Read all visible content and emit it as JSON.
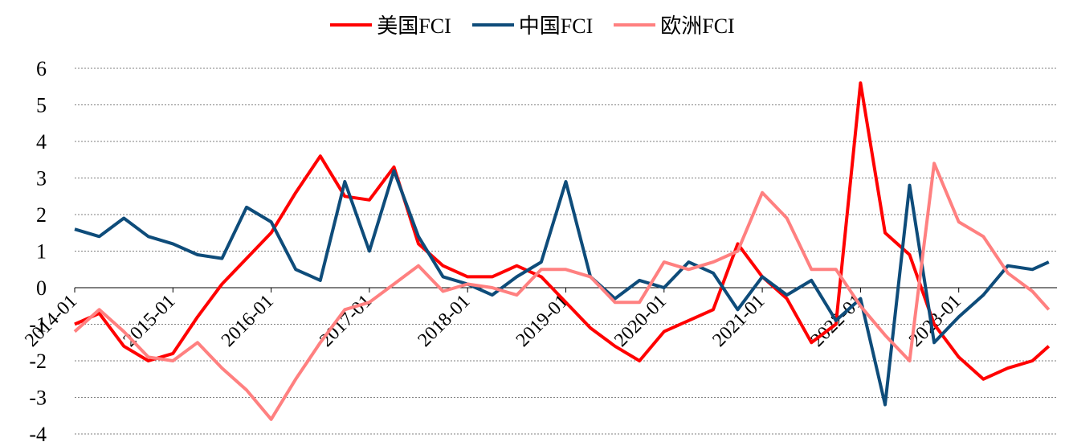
{
  "chart_data": {
    "type": "line",
    "title": "",
    "xlabel": "",
    "ylabel": "",
    "ylim": [
      -4,
      6
    ],
    "yticks": [
      "6",
      "5",
      "4",
      "3",
      "2",
      "1",
      "0",
      "-1",
      "-2",
      "-3",
      "-4"
    ],
    "xtick_labels": [
      "2014-01",
      "2015-01",
      "2016-01",
      "2017-01",
      "2018-01",
      "2019-01",
      "2020-01",
      "2021-01",
      "2022-01",
      "2023-01"
    ],
    "grid": true,
    "legend_position": "top-center",
    "x": [
      "2014-01",
      "2014-04",
      "2014-07",
      "2014-10",
      "2015-01",
      "2015-04",
      "2015-07",
      "2015-10",
      "2016-01",
      "2016-04",
      "2016-07",
      "2016-10",
      "2017-01",
      "2017-04",
      "2017-07",
      "2017-10",
      "2018-01",
      "2018-04",
      "2018-07",
      "2018-10",
      "2019-01",
      "2019-04",
      "2019-07",
      "2019-10",
      "2020-01",
      "2020-04",
      "2020-07",
      "2020-10",
      "2021-01",
      "2021-04",
      "2021-07",
      "2021-10",
      "2022-01",
      "2022-04",
      "2022-07",
      "2022-10",
      "2023-01",
      "2023-04",
      "2023-07",
      "2023-10",
      "2023-12"
    ],
    "series": [
      {
        "name": "美国FCI",
        "color": "#ff0000",
        "values": [
          -1.0,
          -0.7,
          -1.6,
          -2.0,
          -1.8,
          -0.8,
          0.1,
          0.8,
          1.5,
          2.6,
          3.6,
          2.5,
          2.4,
          3.3,
          1.2,
          0.6,
          0.3,
          0.3,
          0.6,
          0.3,
          -0.4,
          -1.1,
          -1.6,
          -2.0,
          -1.2,
          -0.9,
          -0.6,
          1.2,
          0.3,
          -0.3,
          -1.5,
          -1.0,
          5.6,
          1.5,
          0.9,
          -1.0,
          -1.9,
          -2.5,
          -2.2,
          -2.0,
          -1.6
        ]
      },
      {
        "name": "中国FCI",
        "color": "#0e4c7a",
        "values": [
          1.6,
          1.4,
          1.9,
          1.4,
          1.2,
          0.9,
          0.8,
          2.2,
          1.8,
          0.5,
          0.2,
          2.9,
          1.0,
          3.2,
          1.4,
          0.3,
          0.1,
          -0.2,
          0.3,
          0.7,
          2.9,
          0.3,
          -0.3,
          0.2,
          0.0,
          0.7,
          0.4,
          -0.6,
          0.3,
          -0.2,
          0.2,
          -0.9,
          -0.3,
          -3.2,
          2.8,
          -1.5,
          -0.8,
          -0.2,
          0.6,
          0.5,
          0.7
        ]
      },
      {
        "name": "欧洲FCI",
        "color": "#ff8080",
        "values": [
          -1.2,
          -0.6,
          -1.2,
          -1.9,
          -2.0,
          -1.5,
          -2.2,
          -2.8,
          -3.6,
          -2.5,
          -1.5,
          -0.6,
          -0.4,
          0.1,
          0.6,
          -0.1,
          0.1,
          0.0,
          -0.2,
          0.5,
          0.5,
          0.3,
          -0.4,
          -0.4,
          0.7,
          0.5,
          0.7,
          1.0,
          2.6,
          1.9,
          0.5,
          0.5,
          -0.5,
          -1.3,
          -2.0,
          3.4,
          1.8,
          1.4,
          0.4,
          -0.1,
          -0.6
        ]
      }
    ]
  }
}
